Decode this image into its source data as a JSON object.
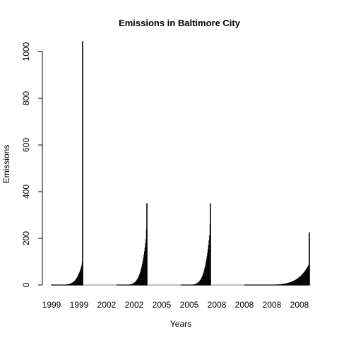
{
  "chart_data": {
    "type": "bar",
    "title": "Emissions in Baltimore City",
    "xlabel": "Years",
    "ylabel": "Emissions",
    "ylim": [
      0,
      1050
    ],
    "yticks": [
      0,
      200,
      400,
      600,
      800,
      1000
    ],
    "xtick_labels": [
      "1999",
      "1999",
      "2002",
      "2002",
      "2005",
      "2005",
      "2008",
      "2008",
      "2008",
      "2008"
    ],
    "grid": false,
    "legend": "none",
    "bar_color": "#000000",
    "series": [
      {
        "year": "1999",
        "peak": 1045,
        "secondary": 100
      },
      {
        "year": "2002",
        "peak": 350,
        "secondary": 240
      },
      {
        "year": "2005",
        "peak": 350,
        "secondary": 260
      },
      {
        "year": "2008",
        "peak": 225,
        "secondary": 90
      }
    ]
  }
}
